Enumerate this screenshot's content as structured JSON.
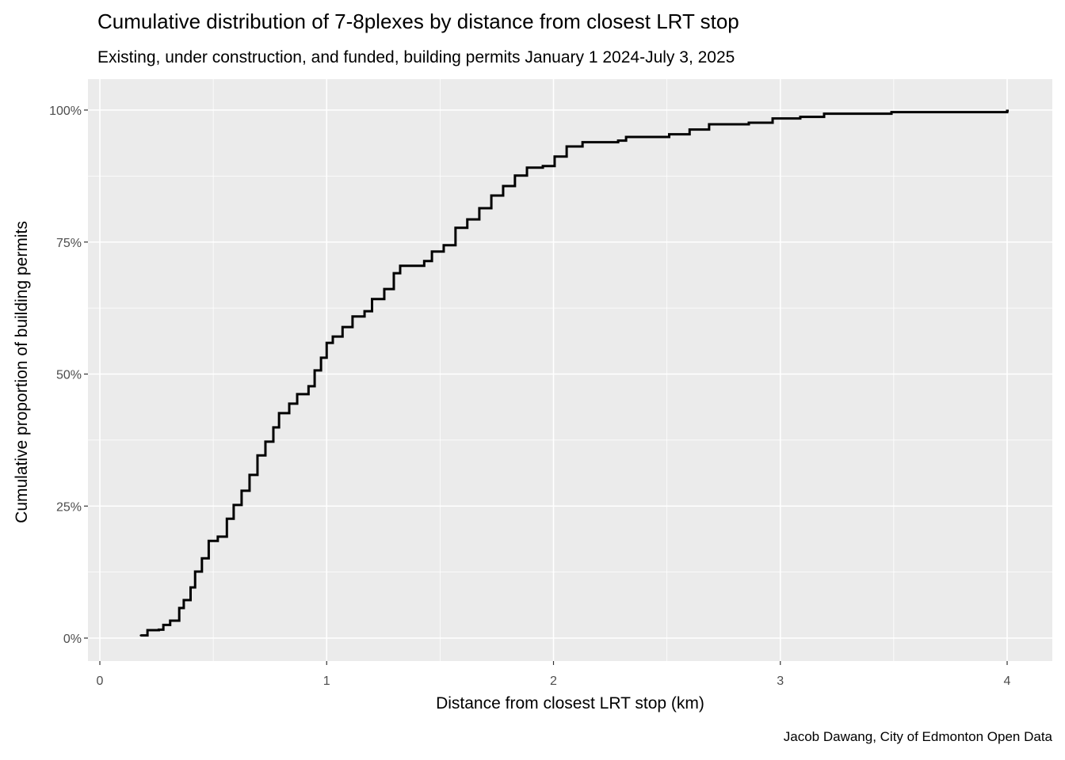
{
  "chart_data": {
    "type": "line",
    "step": true,
    "title": "Cumulative distribution of 7-8plexes by distance from closest LRT stop",
    "subtitle": "Existing, under construction, and funded, building permits January 1 2024-July 3, 2025",
    "xlabel": "Distance from closest LRT stop (km)",
    "ylabel": "Cumulative proportion of building permits",
    "caption": "Jacob Dawang, City of Edmonton Open Data",
    "xlim": [
      -0.05,
      4.2
    ],
    "ylim": [
      -0.05,
      1.05
    ],
    "x_ticks": [
      0,
      1,
      2,
      3,
      4
    ],
    "x_tick_labels": [
      "0",
      "1",
      "2",
      "3",
      "4"
    ],
    "y_ticks": [
      0,
      0.25,
      0.5,
      0.75,
      1
    ],
    "y_tick_labels": [
      "0%",
      "25%",
      "50%",
      "75%",
      "100%"
    ],
    "grid": true,
    "background": "#EBEBEB",
    "line_color": "#000000",
    "x": [
      0.18,
      0.21,
      0.26,
      0.28,
      0.31,
      0.35,
      0.37,
      0.4,
      0.42,
      0.45,
      0.48,
      0.52,
      0.56,
      0.59,
      0.625,
      0.66,
      0.695,
      0.73,
      0.765,
      0.79,
      0.835,
      0.87,
      0.92,
      0.947,
      0.975,
      1.0,
      1.027,
      1.07,
      1.114,
      1.167,
      1.2,
      1.254,
      1.296,
      1.324,
      1.43,
      1.464,
      1.516,
      1.568,
      1.62,
      1.673,
      1.726,
      1.778,
      1.83,
      1.883,
      1.953,
      2.005,
      2.058,
      2.128,
      2.285,
      2.32,
      2.51,
      2.6,
      2.686,
      2.861,
      2.966,
      3.088,
      3.193,
      3.49,
      4.0
    ],
    "y": [
      0.005,
      0.015,
      0.016,
      0.025,
      0.033,
      0.057,
      0.072,
      0.096,
      0.126,
      0.151,
      0.184,
      0.192,
      0.226,
      0.252,
      0.279,
      0.309,
      0.346,
      0.372,
      0.399,
      0.426,
      0.444,
      0.462,
      0.477,
      0.507,
      0.531,
      0.559,
      0.571,
      0.589,
      0.609,
      0.619,
      0.642,
      0.661,
      0.691,
      0.705,
      0.714,
      0.732,
      0.744,
      0.777,
      0.793,
      0.814,
      0.838,
      0.856,
      0.876,
      0.891,
      0.894,
      0.912,
      0.931,
      0.939,
      0.942,
      0.949,
      0.954,
      0.963,
      0.973,
      0.976,
      0.984,
      0.987,
      0.993,
      0.996,
      0.9985
    ]
  }
}
